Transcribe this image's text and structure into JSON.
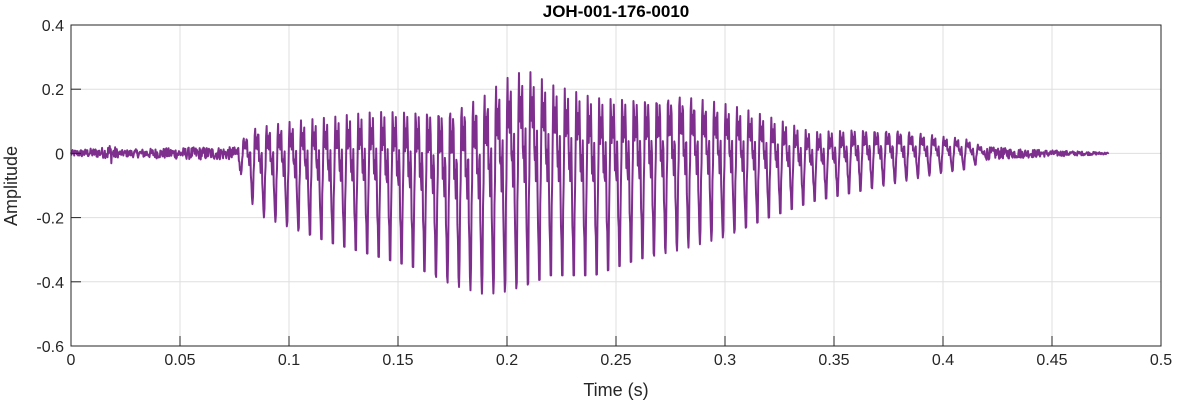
{
  "chart_data": {
    "type": "line",
    "title": "JOH-001-176-0010",
    "xlabel": "Time (s)",
    "ylabel": "Amplitude",
    "xlim": [
      0,
      0.5
    ],
    "ylim": [
      -0.6,
      0.4
    ],
    "grid": true,
    "x_ticks": [
      "0",
      "0.05",
      "0.1",
      "0.15",
      "0.2",
      "0.25",
      "0.3",
      "0.35",
      "0.4",
      "0.45",
      "0.5"
    ],
    "y_ticks": [
      "0.4",
      "0.2",
      "0",
      "-0.2",
      "-0.4",
      "-0.6"
    ],
    "series": [
      {
        "color": "#7E2F8E",
        "duration": 0.476,
        "envelope": [
          {
            "x": 0.0,
            "max": 0.01,
            "min": -0.01
          },
          {
            "x": 0.016,
            "max": 0.02,
            "min": -0.015
          },
          {
            "x": 0.018,
            "max": 0.035,
            "min": -0.035
          },
          {
            "x": 0.022,
            "max": 0.01,
            "min": -0.01
          },
          {
            "x": 0.035,
            "max": 0.015,
            "min": -0.015
          },
          {
            "x": 0.06,
            "max": 0.02,
            "min": -0.02
          },
          {
            "x": 0.075,
            "max": 0.02,
            "min": -0.02
          },
          {
            "x": 0.079,
            "max": 0.07,
            "min": -0.08
          },
          {
            "x": 0.085,
            "max": 0.13,
            "min": -0.19
          },
          {
            "x": 0.1,
            "max": 0.15,
            "min": -0.23
          },
          {
            "x": 0.12,
            "max": 0.17,
            "min": -0.28
          },
          {
            "x": 0.14,
            "max": 0.2,
            "min": -0.32
          },
          {
            "x": 0.16,
            "max": 0.22,
            "min": -0.36
          },
          {
            "x": 0.175,
            "max": 0.24,
            "min": -0.41
          },
          {
            "x": 0.19,
            "max": 0.29,
            "min": -0.44
          },
          {
            "x": 0.2,
            "max": 0.34,
            "min": -0.43
          },
          {
            "x": 0.209,
            "max": 0.36,
            "min": -0.41
          },
          {
            "x": 0.22,
            "max": 0.3,
            "min": -0.38
          },
          {
            "x": 0.24,
            "max": 0.26,
            "min": -0.38
          },
          {
            "x": 0.26,
            "max": 0.26,
            "min": -0.33
          },
          {
            "x": 0.28,
            "max": 0.27,
            "min": -0.3
          },
          {
            "x": 0.3,
            "max": 0.22,
            "min": -0.26
          },
          {
            "x": 0.32,
            "max": 0.16,
            "min": -0.2
          },
          {
            "x": 0.34,
            "max": 0.1,
            "min": -0.15
          },
          {
            "x": 0.36,
            "max": 0.11,
            "min": -0.12
          },
          {
            "x": 0.38,
            "max": 0.1,
            "min": -0.09
          },
          {
            "x": 0.4,
            "max": 0.07,
            "min": -0.06
          },
          {
            "x": 0.41,
            "max": 0.06,
            "min": -0.05
          },
          {
            "x": 0.42,
            "max": 0.02,
            "min": -0.02
          },
          {
            "x": 0.45,
            "max": 0.01,
            "min": -0.01
          },
          {
            "x": 0.476,
            "max": 0.003,
            "min": -0.003
          }
        ]
      }
    ]
  }
}
